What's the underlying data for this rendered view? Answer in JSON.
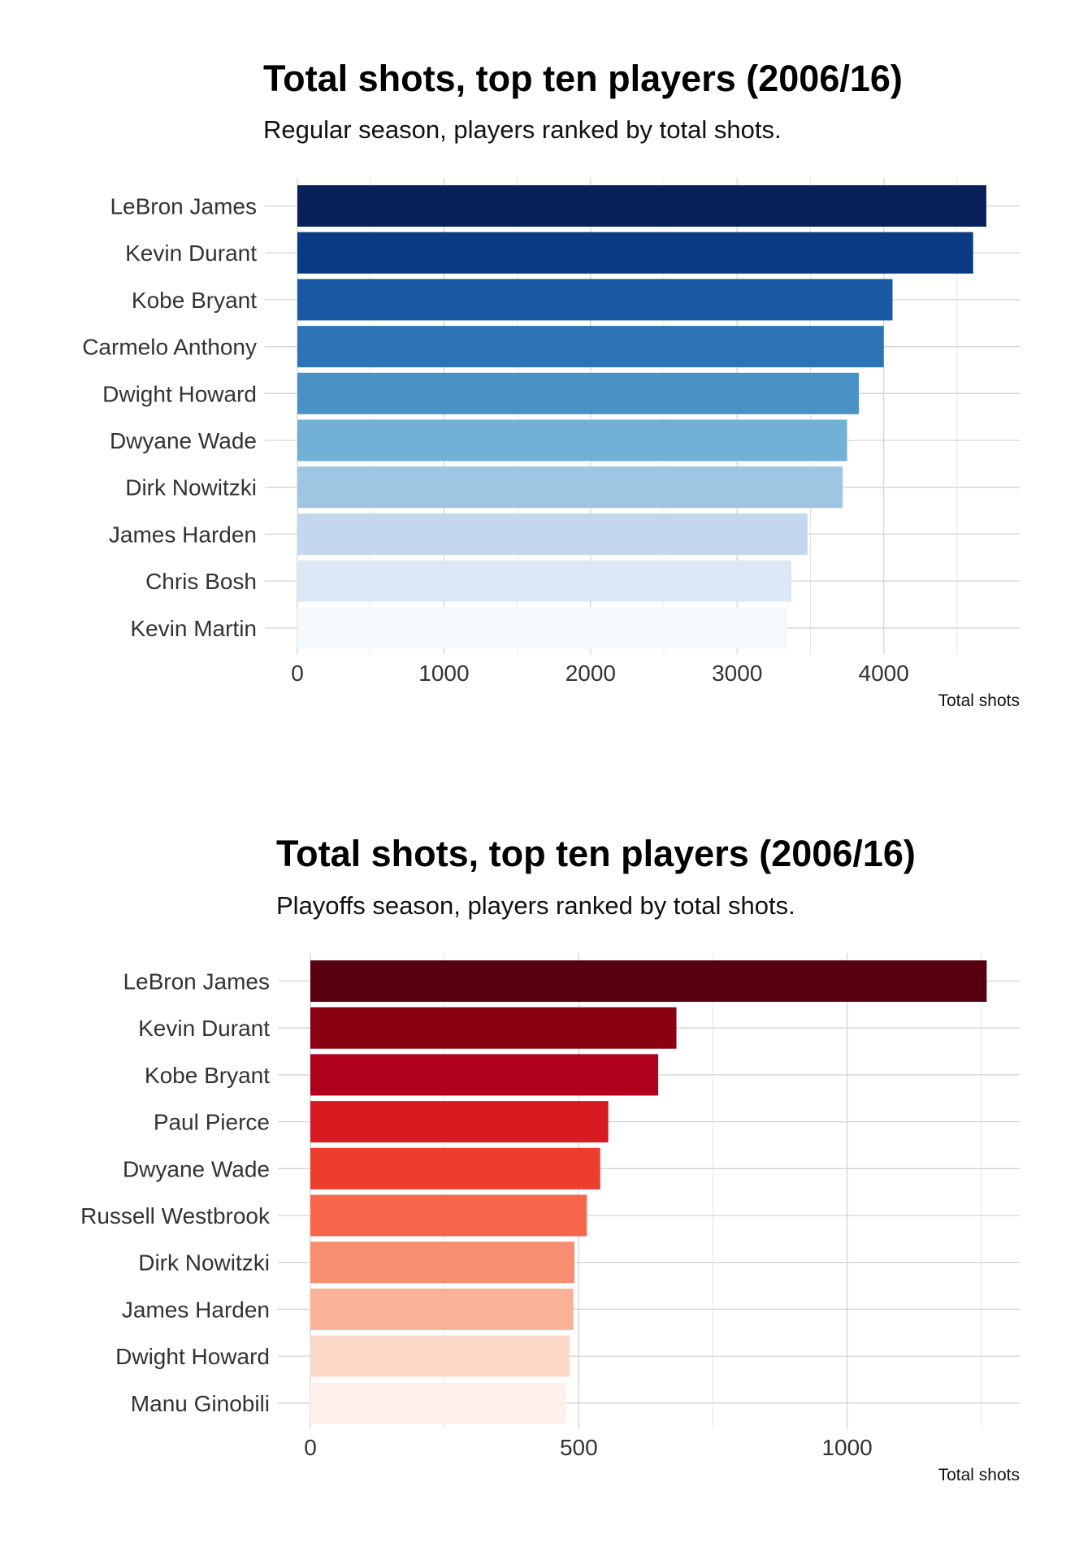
{
  "chart_data": [
    {
      "type": "bar",
      "orientation": "horizontal",
      "title": "Total shots, top ten players (2006/16)",
      "subtitle": "Regular season, players ranked by total shots.",
      "xlabel": "Total shots",
      "ylabel": "",
      "xlim": [
        0,
        4900
      ],
      "ticks": [
        0,
        1000,
        2000,
        3000,
        4000
      ],
      "tick_labels": [
        "0",
        "1000",
        "2000",
        "3000",
        "4000"
      ],
      "grid": true,
      "categories": [
        "LeBron James",
        "Kevin Durant",
        "Kobe Bryant",
        "Carmelo Anthony",
        "Dwight Howard",
        "Dwyane Wade",
        "Dirk Nowitzki",
        "James Harden",
        "Chris Bosh",
        "Kevin Martin"
      ],
      "values": [
        4700,
        4610,
        4060,
        4000,
        3830,
        3750,
        3720,
        3480,
        3370,
        3340
      ],
      "colors": [
        "#08215a",
        "#0b3b85",
        "#1a59a4",
        "#2c74b6",
        "#4a91c6",
        "#72b0d6",
        "#9ec6e2",
        "#c3d8ee",
        "#dce8f5",
        "#f4f9fe"
      ]
    },
    {
      "type": "bar",
      "orientation": "horizontal",
      "title": "Total shots, top ten players (2006/16)",
      "subtitle": "Playoffs season, players ranked by total shots.",
      "xlabel": "Total shots",
      "ylabel": "",
      "xlim": [
        0,
        1320
      ],
      "ticks": [
        0,
        500,
        1000
      ],
      "tick_labels": [
        "0",
        "500",
        "1000"
      ],
      "grid": true,
      "categories": [
        "LeBron James",
        "Kevin Durant",
        "Kobe Bryant",
        "Paul Pierce",
        "Dwyane Wade",
        "Russell Westbrook",
        "Dirk Nowitzki",
        "James Harden",
        "Dwight Howard",
        "Manu Ginobili"
      ],
      "values": [
        1260,
        682,
        648,
        555,
        540,
        515,
        492,
        490,
        483,
        477
      ],
      "colors": [
        "#570010",
        "#890013",
        "#b1001d",
        "#d81b20",
        "#ed3e2d",
        "#f7654b",
        "#f88e70",
        "#f9b297",
        "#fcd9c9",
        "#fef1ec"
      ]
    }
  ]
}
